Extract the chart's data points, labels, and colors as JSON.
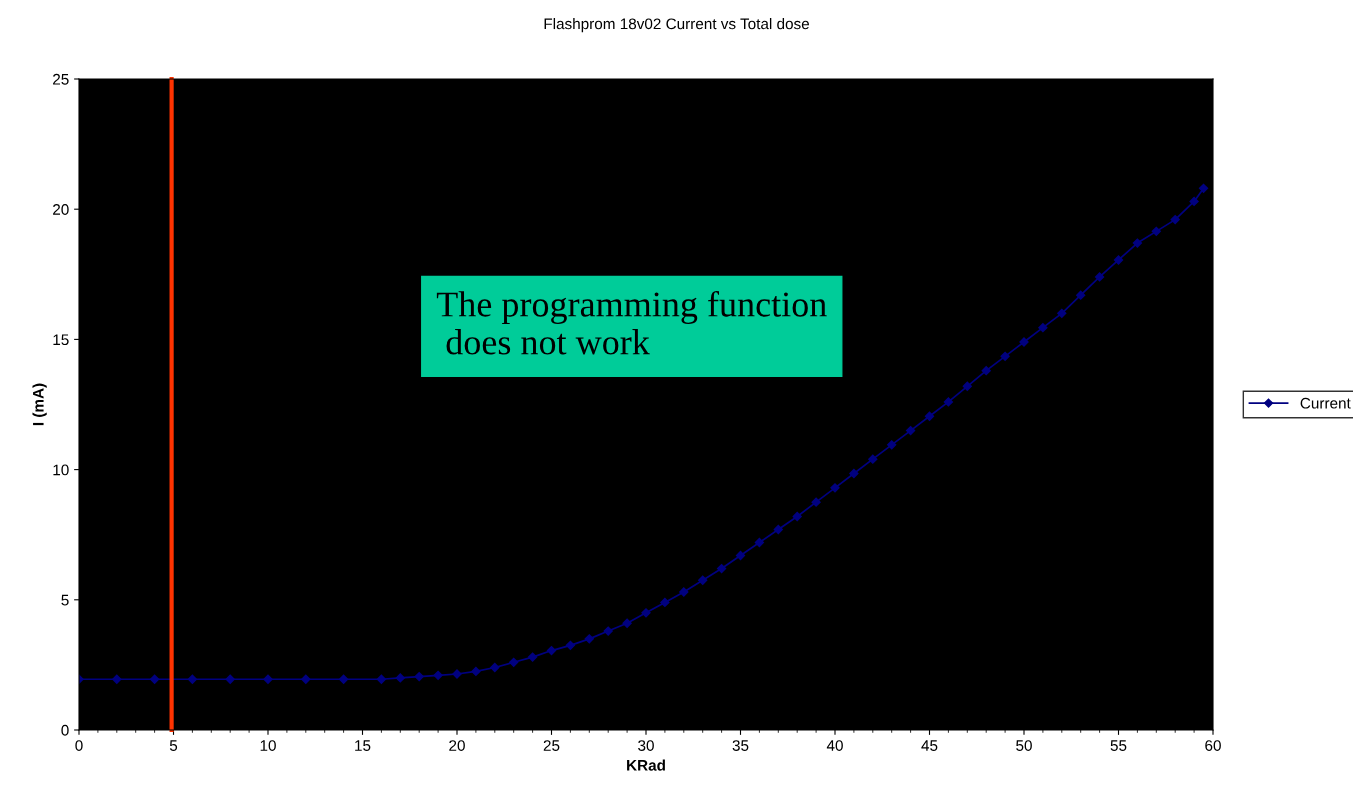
{
  "chart_data": {
    "type": "line",
    "title": "Flashprom 18v02 Current vs Total dose",
    "xlabel": "KRad",
    "ylabel": "I (mA)",
    "series": [
      {
        "name": "Current",
        "color": "#000080",
        "x": [
          0,
          2,
          4,
          6,
          8,
          10,
          12,
          14,
          16,
          17,
          18,
          19,
          20,
          21,
          22,
          23,
          24,
          25,
          26,
          27,
          28,
          29,
          30,
          31,
          32,
          33,
          34,
          35,
          36,
          37,
          38,
          39,
          40,
          41,
          42,
          43,
          44,
          45,
          46,
          47,
          48,
          49,
          50,
          51,
          52,
          53,
          54,
          55,
          56,
          57,
          58,
          59,
          59.5
        ],
        "values": [
          1.95,
          1.95,
          1.95,
          1.95,
          1.95,
          1.95,
          1.95,
          1.95,
          1.95,
          2.0,
          2.05,
          2.1,
          2.15,
          2.25,
          2.4,
          2.6,
          2.8,
          3.05,
          3.25,
          3.5,
          3.8,
          4.1,
          4.5,
          4.9,
          5.3,
          5.75,
          6.2,
          6.7,
          7.2,
          7.7,
          8.2,
          8.75,
          9.3,
          9.85,
          10.4,
          10.95,
          11.5,
          12.05,
          12.6,
          13.2,
          13.8,
          14.35,
          14.9,
          15.45,
          16.0,
          16.7,
          17.4,
          18.05,
          18.7,
          19.15,
          19.6,
          20.3,
          20.8
        ]
      }
    ],
    "xlim": [
      0,
      60
    ],
    "xticks": [
      0,
      5,
      10,
      15,
      20,
      25,
      30,
      35,
      40,
      45,
      50,
      55,
      60
    ],
    "ylim": [
      0,
      25
    ],
    "yticks": [
      0,
      5,
      10,
      15,
      20,
      25
    ],
    "ref_lines": [
      {
        "axis": "x",
        "value": 4.9,
        "color": "#ff3300",
        "line_style": "solid"
      }
    ],
    "annotations": [
      "The programming function\n does not work"
    ],
    "grid": false,
    "legend": "right",
    "marker": "diamond",
    "line_style": "solid"
  }
}
